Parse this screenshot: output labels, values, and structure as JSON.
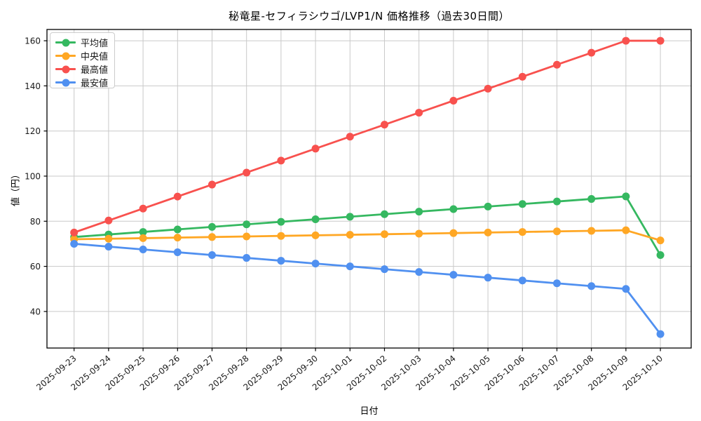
{
  "chart_data": {
    "type": "line",
    "title": "秘竜星-セフィラシウゴ/LVP1/N 価格推移（過去30日間）",
    "xlabel": "日付",
    "ylabel": "値（円）",
    "grid": true,
    "legend_position": "upper left",
    "categories": [
      "2025-09-23",
      "2025-09-24",
      "2025-09-25",
      "2025-09-26",
      "2025-09-27",
      "2025-09-28",
      "2025-09-29",
      "2025-09-30",
      "2025-10-01",
      "2025-10-02",
      "2025-10-03",
      "2025-10-04",
      "2025-10-05",
      "2025-10-06",
      "2025-10-07",
      "2025-10-08",
      "2025-10-09",
      "2025-10-10"
    ],
    "yticks": [
      40,
      60,
      80,
      100,
      120,
      140,
      160
    ],
    "ylim": [
      23.8,
      165.0
    ],
    "series": [
      {
        "name": "平均値",
        "color": "#35b860",
        "values": [
          73,
          74.125,
          75.25,
          76.375,
          77.5,
          78.625,
          79.75,
          80.875,
          82,
          83.125,
          84.25,
          85.375,
          86.5,
          87.625,
          88.75,
          89.875,
          91,
          65
        ]
      },
      {
        "name": "中央値",
        "color": "#ffa724",
        "values": [
          72,
          72.25,
          72.5,
          72.75,
          73,
          73.25,
          73.5,
          73.75,
          74,
          74.25,
          74.5,
          74.75,
          75,
          75.25,
          75.5,
          75.75,
          76,
          71.5
        ]
      },
      {
        "name": "最高値",
        "color": "#f8514e",
        "values": [
          75,
          80.3125,
          85.625,
          90.9375,
          96.25,
          101.5625,
          106.875,
          112.1875,
          117.5,
          122.8125,
          128.125,
          133.4375,
          138.75,
          144.0625,
          149.375,
          154.6875,
          160,
          160
        ]
      },
      {
        "name": "最安値",
        "color": "#5090f0",
        "values": [
          70,
          68.75,
          67.5,
          66.25,
          65,
          63.75,
          62.5,
          61.25,
          60,
          58.75,
          57.5,
          56.25,
          55,
          53.75,
          52.5,
          51.25,
          50,
          30
        ]
      }
    ],
    "style": {
      "grid_color": "#c9c9c9",
      "spine_color": "#000000",
      "tick_label_color": "#1a1a1a",
      "line_width": 2.8,
      "marker_radius": 5.5
    }
  }
}
